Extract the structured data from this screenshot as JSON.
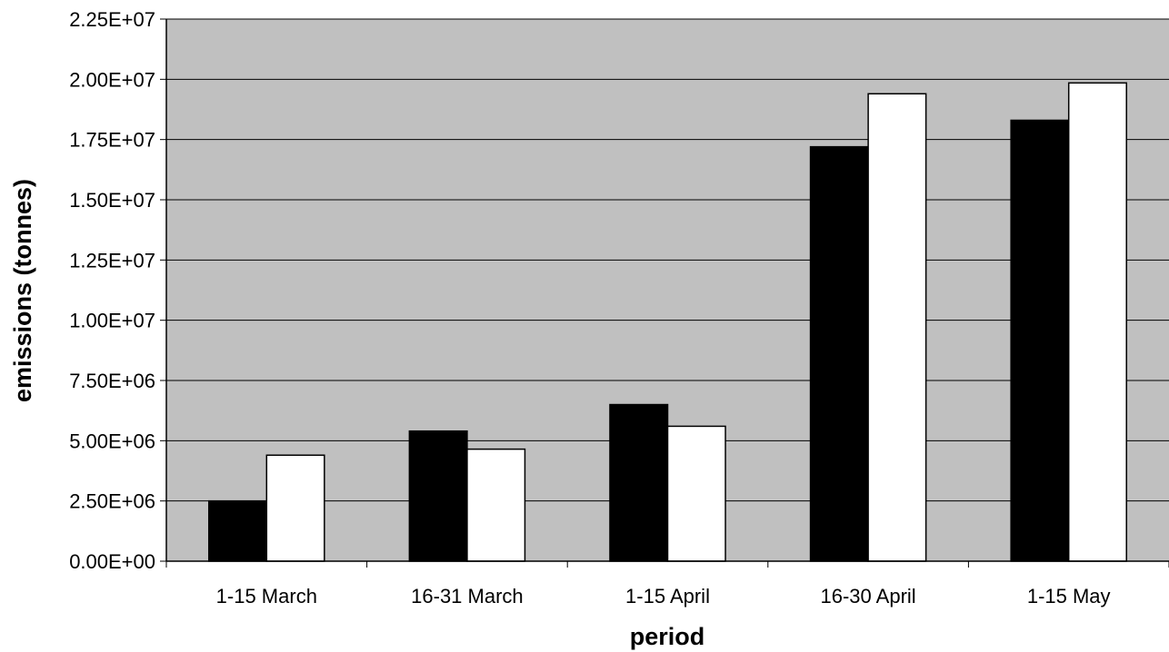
{
  "chart_data": {
    "type": "bar",
    "title": "",
    "xlabel": "period",
    "ylabel": "emissions (tonnes)",
    "categories": [
      "1-15 March",
      "16-31 March",
      "1-15 April",
      "16-30 April",
      "1-15 May"
    ],
    "series": [
      {
        "color": "#000000",
        "values": [
          2500000,
          5400000,
          6500000,
          17200000,
          18300000
        ]
      },
      {
        "color": "#ffffff",
        "values": [
          4400000,
          4650000,
          5600000,
          19400000,
          19850000
        ]
      }
    ],
    "ylim": [
      0,
      22500000
    ],
    "yticks": [
      "0.00E+00",
      "2.50E+06",
      "5.00E+06",
      "7.50E+06",
      "1.00E+07",
      "1.25E+07",
      "1.50E+07",
      "1.75E+07",
      "2.00E+07",
      "2.25E+07"
    ],
    "grid": true,
    "legend": "none",
    "plot_background": "#c0c0c0"
  }
}
